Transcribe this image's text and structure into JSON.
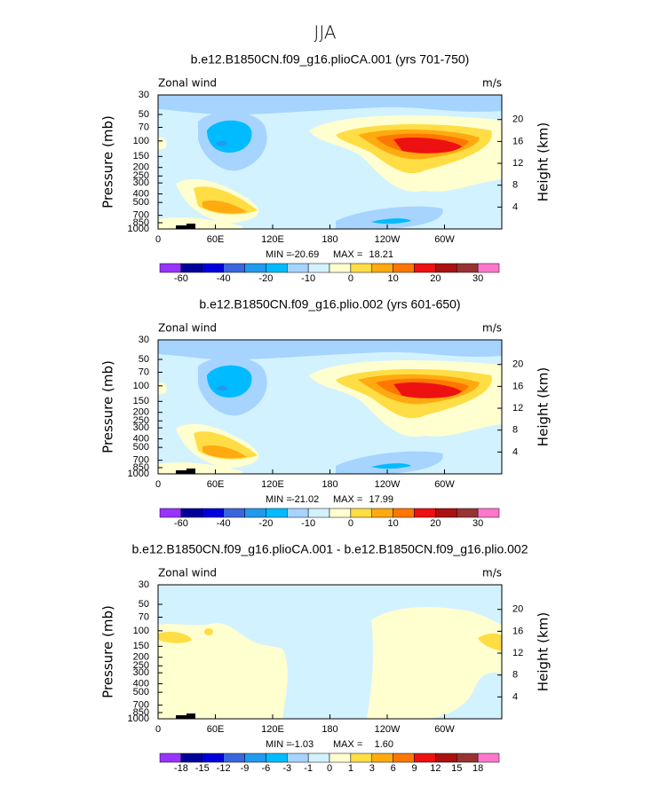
{
  "title": "JJA",
  "chart_data": [
    {
      "type": "contour",
      "title": "b.e12.B1850CN.f09_g16.plioCA.001 (yrs 701-750)",
      "left_label": "Zonal wind",
      "units": "m/s",
      "ylabel": "Pressure (mb)",
      "y2label": "Height (km)",
      "ylim": [
        1000,
        30
      ],
      "log_y": true,
      "yticks": [
        30,
        50,
        70,
        100,
        150,
        200,
        250,
        300,
        400,
        500,
        700,
        850,
        1000
      ],
      "y2lim": [
        0,
        24.5
      ],
      "y2ticks": [
        4,
        8,
        12,
        16,
        20
      ],
      "xlim": [
        0,
        360
      ],
      "xticks": [
        0,
        {
          "value": 60,
          "label": "60E"
        },
        {
          "value": 120,
          "label": "120E"
        },
        180,
        {
          "value": 240,
          "label": "120W"
        },
        {
          "value": 300,
          "label": "60W"
        }
      ],
      "min_label": "MIN =",
      "min": {
        "value": -20.69,
        "label": "-20.69"
      },
      "max_label": "MAX =",
      "max": {
        "value": 18.21,
        "label": "18.21"
      },
      "colorbar": {
        "colors": [
          "#9933ff",
          "#000099",
          "#0000dd",
          "#3a66dd",
          "#2299ee",
          "#00bbff",
          "#a6d4ff",
          "#d2f2ff",
          "#ffffd0",
          "#ffdd44",
          "#ffaa11",
          "#ff7700",
          "#ee1111",
          "#aa1111",
          "#993333",
          "#ff77cc"
        ],
        "labels": [
          -60,
          -40,
          -20,
          -10,
          0,
          10,
          20,
          30
        ]
      }
    },
    {
      "type": "contour",
      "title": "b.e12.B1850CN.f09_g16.plio.002 (yrs 601-650)",
      "left_label": "Zonal wind",
      "units": "m/s",
      "ylabel": "Pressure (mb)",
      "y2label": "Height (km)",
      "ylim": [
        1000,
        30
      ],
      "log_y": true,
      "yticks": [
        30,
        50,
        70,
        100,
        150,
        200,
        250,
        300,
        400,
        500,
        700,
        850,
        1000
      ],
      "y2lim": [
        0,
        24.5
      ],
      "y2ticks": [
        4,
        8,
        12,
        16,
        20
      ],
      "xlim": [
        0,
        360
      ],
      "xticks": [
        0,
        {
          "value": 60,
          "label": "60E"
        },
        {
          "value": 120,
          "label": "120E"
        },
        180,
        {
          "value": 240,
          "label": "120W"
        },
        {
          "value": 300,
          "label": "60W"
        }
      ],
      "min_label": "MIN =",
      "min": {
        "value": -21.02,
        "label": "-21.02"
      },
      "max_label": "MAX =",
      "max": {
        "value": 17.99,
        "label": "17.99"
      },
      "colorbar": {
        "colors": [
          "#9933ff",
          "#000099",
          "#0000dd",
          "#3a66dd",
          "#2299ee",
          "#00bbff",
          "#a6d4ff",
          "#d2f2ff",
          "#ffffd0",
          "#ffdd44",
          "#ffaa11",
          "#ff7700",
          "#ee1111",
          "#aa1111",
          "#993333",
          "#ff77cc"
        ],
        "labels": [
          -60,
          -40,
          -20,
          -10,
          0,
          10,
          20,
          30
        ]
      }
    },
    {
      "type": "contour",
      "title": "b.e12.B1850CN.f09_g16.plioCA.001 - b.e12.B1850CN.f09_g16.plio.002",
      "left_label": "Zonal wind",
      "units": "m/s",
      "ylabel": "Pressure (mb)",
      "y2label": "Height (km)",
      "ylim": [
        1000,
        30
      ],
      "log_y": true,
      "yticks": [
        30,
        50,
        70,
        100,
        150,
        200,
        250,
        300,
        400,
        500,
        700,
        850,
        1000
      ],
      "y2lim": [
        0,
        24.5
      ],
      "y2ticks": [
        4,
        8,
        12,
        16,
        20
      ],
      "xlim": [
        0,
        360
      ],
      "xticks": [
        0,
        {
          "value": 60,
          "label": "60E"
        },
        {
          "value": 120,
          "label": "120E"
        },
        180,
        {
          "value": 240,
          "label": "120W"
        },
        {
          "value": 300,
          "label": "60W"
        }
      ],
      "min_label": "MIN =",
      "min": {
        "value": -1.03,
        "label": "-1.03"
      },
      "max_label": "MAX =",
      "max": {
        "value": 1.6,
        "label": "1.60"
      },
      "colorbar": {
        "colors": [
          "#9933ff",
          "#000099",
          "#0000dd",
          "#3a66dd",
          "#2299ee",
          "#00bbff",
          "#a6d4ff",
          "#d2f2ff",
          "#ffffd0",
          "#ffdd44",
          "#ffaa11",
          "#ff7700",
          "#ee1111",
          "#aa1111",
          "#993333",
          "#ff77cc"
        ],
        "labels": [
          -18,
          -15,
          -12,
          -9,
          -6,
          -3,
          -1,
          0,
          1,
          3,
          6,
          9,
          12,
          15,
          18
        ]
      }
    }
  ]
}
